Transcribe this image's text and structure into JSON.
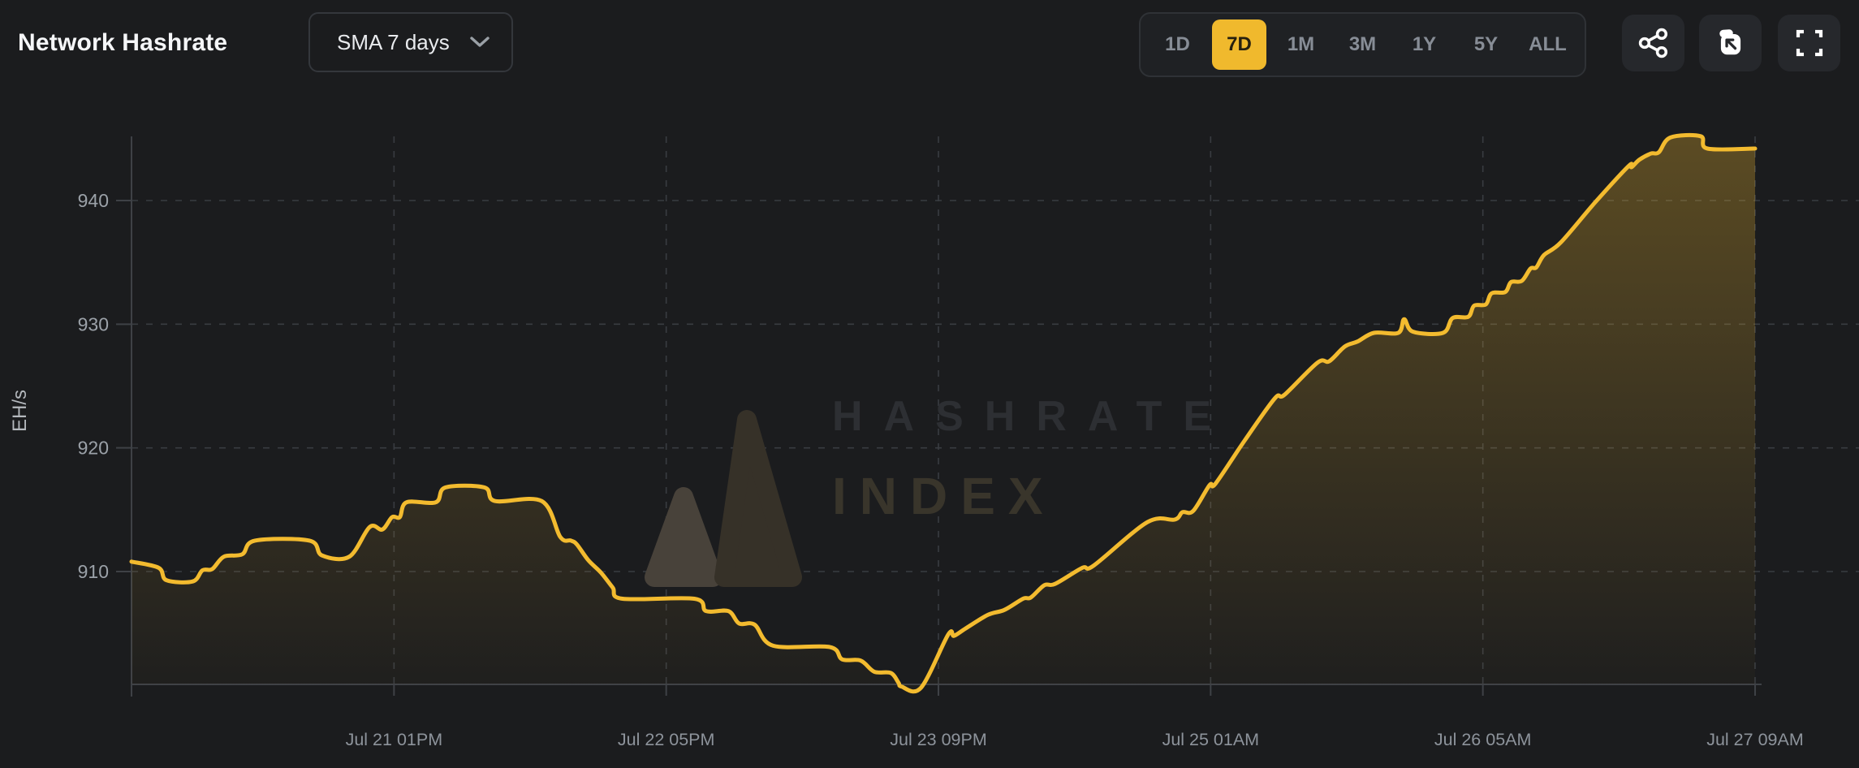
{
  "header": {
    "title": "Network Hashrate",
    "sma_dropdown": {
      "value": "SMA 7 days",
      "chevron_icon": "chevron-down-icon"
    },
    "range_selector": {
      "options": [
        "1D",
        "7D",
        "1M",
        "3M",
        "1Y",
        "5Y",
        "ALL"
      ],
      "selected": "7D"
    },
    "action_buttons": [
      {
        "name": "share-button",
        "icon": "share-icon"
      },
      {
        "name": "snapshot-button",
        "icon": "snapshot-icon"
      },
      {
        "name": "fullscreen-button",
        "icon": "fullscreen-icon"
      }
    ]
  },
  "watermark": {
    "logo_icon": "hashrate-index-logo",
    "line1": "HASHRATE",
    "line2": "INDEX"
  },
  "colors": {
    "background": "#1b1c1e",
    "panel": "#26282c",
    "accent": "#f0b92d",
    "line": "#f3bb2f",
    "grid": "#393c41",
    "axis": "#3e4146",
    "y_tick_text": "#9ba1a8",
    "x_tick_text": "#8d939b",
    "axis_title_text": "#b4b8bd",
    "range_text": "#878d96",
    "selected_range_text": "#26200f"
  },
  "chart_data": {
    "type": "area",
    "title": "Network Hashrate",
    "series_name": "Network hashrate (SMA 7 days)",
    "ylabel": "EH/s",
    "unit": "EH/s",
    "grid": "dashed",
    "legend": false,
    "y_ticks": [
      910,
      920,
      930,
      940
    ],
    "ylim": [
      900.9,
      946.4
    ],
    "x_unit": "hours elapsed (t=0 at Jul 20 ~10AM, hourly SMA-7d samples)",
    "x_ticks": [
      {
        "label": "Jul 21 01PM",
        "t": 27
      },
      {
        "label": "Jul 22 05PM",
        "t": 55
      },
      {
        "label": "Jul 23 09PM",
        "t": 83
      },
      {
        "label": "Jul 25 01AM",
        "t": 111
      },
      {
        "label": "Jul 26 05AM",
        "t": 139
      },
      {
        "label": "Jul 27 09AM",
        "t": 167
      }
    ],
    "points": {
      "t": [
        0,
        2.8,
        3.6,
        6.3,
        7.3,
        8.3,
        9.5,
        11.4,
        12.7,
        18.3,
        19.6,
        22.4,
        24.5,
        25.8,
        26.8,
        27.6,
        28.3,
        31.3,
        32.3,
        36.3,
        37.4,
        42.2,
        44.1,
        45.2,
        45.8,
        47,
        48.3,
        49.5,
        50.5,
        57.9,
        59.1,
        61.4,
        62.5,
        64.1,
        66,
        71.8,
        73.1,
        75,
        76.4,
        78.1,
        78.9,
        79.2,
        81.2,
        84,
        84.6,
        85.8,
        88.1,
        89.8,
        91.7,
        92.5,
        93.9,
        95,
        97.8,
        99,
        104.5,
        107.3,
        108.1,
        109.2,
        110.9,
        111.5,
        114.5,
        117.6,
        118.6,
        122,
        123.2,
        124.8,
        126.1,
        127.8,
        130.3,
        130.9,
        131.8,
        134.9,
        135.9,
        137.5,
        138.1,
        139.3,
        139.9,
        141.3,
        141.9,
        143,
        143.9,
        144.5,
        145.3,
        147,
        150.6,
        154,
        154.3,
        155.1,
        156.3,
        157.1,
        158.3,
        161.4,
        162.1,
        167
      ],
      "v": [
        910.8,
        910.3,
        909.3,
        909.2,
        910.1,
        910.2,
        911.2,
        911.4,
        912.5,
        912.5,
        911.3,
        911.2,
        913.6,
        913.4,
        914.4,
        914.4,
        915.6,
        915.6,
        916.8,
        916.8,
        915.7,
        915.7,
        912.8,
        912.5,
        912.2,
        910.9,
        909.9,
        908.7,
        907.8,
        907.8,
        906.8,
        906.8,
        905.8,
        905.7,
        904,
        903.9,
        902.9,
        902.8,
        901.9,
        901.8,
        901,
        900.7,
        900.6,
        904.9,
        904.8,
        905.4,
        906.5,
        906.9,
        907.8,
        907.9,
        908.9,
        909,
        910.3,
        910.5,
        914,
        914.2,
        914.8,
        914.9,
        917,
        917.1,
        920.6,
        924,
        924.3,
        926.9,
        927,
        928.2,
        928.6,
        929.3,
        929.3,
        930.4,
        929.4,
        929.3,
        930.5,
        930.6,
        931.5,
        931.6,
        932.5,
        932.6,
        933.4,
        933.5,
        934.5,
        934.6,
        935.6,
        936.6,
        939.9,
        942.8,
        942.7,
        943.3,
        943.8,
        943.9,
        945.1,
        945.2,
        944.2,
        944.2
      ]
    }
  }
}
